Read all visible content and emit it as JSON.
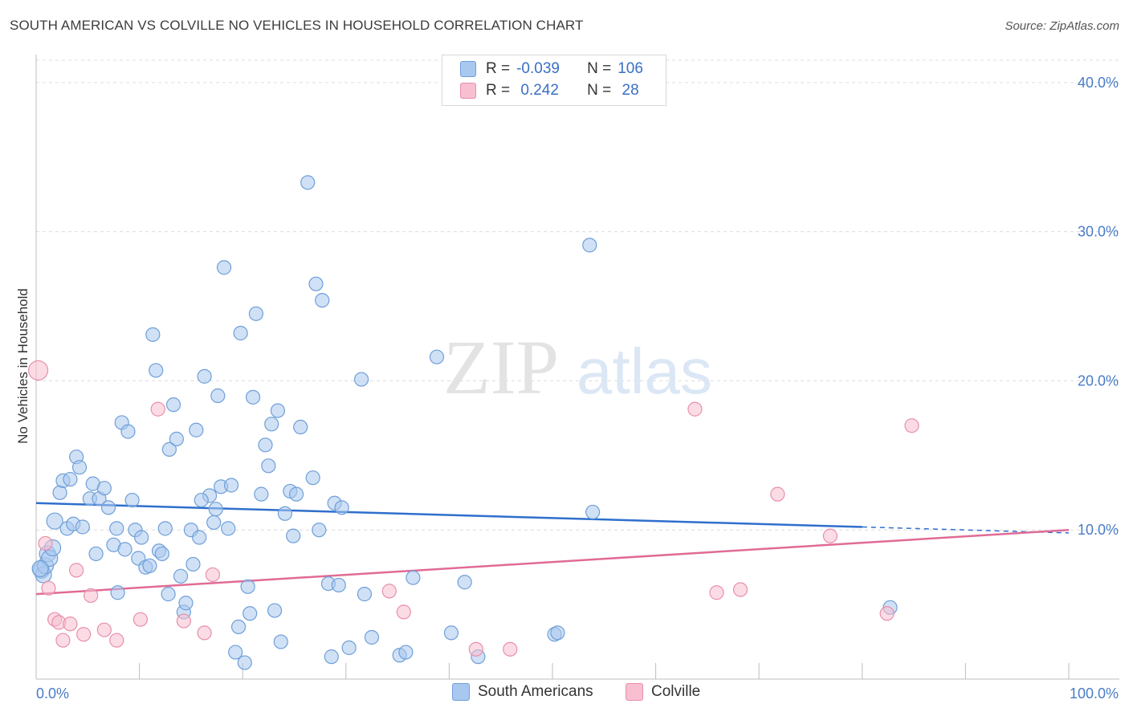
{
  "title": "SOUTH AMERICAN VS COLVILLE NO VEHICLES IN HOUSEHOLD CORRELATION CHART",
  "source": "Source: ZipAtlas.com",
  "watermark": {
    "zip": "ZIP",
    "atlas": "atlas"
  },
  "legend": {
    "rows": [
      {
        "r_label": "R =",
        "r_value": "-0.039",
        "n_label": "N =",
        "n_value": "106"
      },
      {
        "r_label": "R =",
        "r_value": " 0.242",
        "n_label": "N =",
        "n_value": " 28"
      }
    ]
  },
  "bottom_legend": {
    "south": "South Americans",
    "colville": "Colville"
  },
  "colors": {
    "south_fill": "#a9c8ef",
    "south_stroke": "#6f9fd8",
    "south_line": "#2f6fcc",
    "colville_fill": "#f7bfd0",
    "colville_stroke": "#e88fab",
    "colville_line": "#e06b96",
    "grid": "#dcdcdc",
    "tick_text": "#4a7cc8"
  },
  "chart_data": {
    "type": "scatter",
    "title": "SOUTH AMERICAN VS COLVILLE NO VEHICLES IN HOUSEHOLD CORRELATION CHART",
    "xlabel": "",
    "ylabel": "No Vehicles in Household",
    "xlim": [
      0,
      100
    ],
    "ylim": [
      0,
      41.5
    ],
    "x_tick_labels": [
      "0.0%",
      "100.0%"
    ],
    "y_ticks": [
      10,
      20,
      30,
      40
    ],
    "y_tick_labels": [
      "10.0%",
      "20.0%",
      "30.0%",
      "40.0%"
    ],
    "grid": true,
    "legend_position": "top-center",
    "series": [
      {
        "name": "South Americans",
        "R": -0.039,
        "N": 106,
        "trend": {
          "x0": 0,
          "y0": 11.8,
          "x1": 80,
          "y1": 10.2,
          "dashed_to": 100,
          "dashed_y": 9.8
        },
        "points": [
          [
            0.5,
            7.3
          ],
          [
            0.7,
            7.0
          ],
          [
            0.9,
            7.6
          ],
          [
            1.1,
            8.4
          ],
          [
            1.3,
            8.1
          ],
          [
            1.6,
            8.8
          ],
          [
            1.8,
            10.6
          ],
          [
            2.3,
            12.5
          ],
          [
            2.6,
            13.3
          ],
          [
            3.0,
            10.1
          ],
          [
            3.3,
            13.4
          ],
          [
            3.6,
            10.4
          ],
          [
            3.9,
            14.9
          ],
          [
            4.2,
            14.2
          ],
          [
            4.5,
            10.2
          ],
          [
            5.2,
            12.1
          ],
          [
            5.5,
            13.1
          ],
          [
            5.8,
            8.4
          ],
          [
            6.1,
            12.1
          ],
          [
            6.6,
            12.8
          ],
          [
            7.0,
            11.5
          ],
          [
            7.5,
            9.0
          ],
          [
            7.8,
            10.1
          ],
          [
            7.9,
            5.8
          ],
          [
            8.3,
            17.2
          ],
          [
            8.6,
            8.7
          ],
          [
            8.9,
            16.6
          ],
          [
            9.3,
            12.0
          ],
          [
            9.6,
            10.0
          ],
          [
            9.9,
            8.1
          ],
          [
            10.2,
            9.5
          ],
          [
            10.6,
            7.5
          ],
          [
            11.0,
            7.6
          ],
          [
            11.3,
            23.1
          ],
          [
            11.6,
            20.7
          ],
          [
            11.9,
            8.6
          ],
          [
            12.2,
            8.4
          ],
          [
            12.5,
            10.1
          ],
          [
            12.8,
            5.7
          ],
          [
            12.9,
            15.4
          ],
          [
            13.3,
            18.4
          ],
          [
            13.6,
            16.1
          ],
          [
            14.0,
            6.9
          ],
          [
            14.3,
            4.5
          ],
          [
            14.5,
            5.1
          ],
          [
            15.0,
            10.0
          ],
          [
            15.2,
            7.7
          ],
          [
            15.5,
            16.7
          ],
          [
            15.8,
            9.5
          ],
          [
            16.3,
            20.3
          ],
          [
            16.8,
            12.3
          ],
          [
            17.2,
            10.5
          ],
          [
            17.4,
            11.4
          ],
          [
            17.6,
            19.0
          ],
          [
            17.9,
            12.9
          ],
          [
            18.2,
            27.6
          ],
          [
            18.6,
            10.1
          ],
          [
            18.9,
            13.0
          ],
          [
            19.3,
            1.8
          ],
          [
            19.6,
            3.5
          ],
          [
            19.8,
            23.2
          ],
          [
            20.2,
            1.1
          ],
          [
            20.5,
            6.2
          ],
          [
            20.7,
            4.4
          ],
          [
            21.0,
            18.9
          ],
          [
            21.3,
            24.5
          ],
          [
            21.8,
            12.4
          ],
          [
            22.2,
            15.7
          ],
          [
            22.5,
            14.3
          ],
          [
            22.8,
            17.1
          ],
          [
            23.1,
            4.6
          ],
          [
            23.4,
            18.0
          ],
          [
            23.7,
            2.5
          ],
          [
            24.1,
            11.1
          ],
          [
            24.6,
            12.6
          ],
          [
            24.9,
            9.6
          ],
          [
            25.2,
            12.4
          ],
          [
            25.6,
            16.9
          ],
          [
            26.3,
            33.3
          ],
          [
            26.8,
            13.5
          ],
          [
            27.1,
            26.5
          ],
          [
            27.4,
            10.0
          ],
          [
            27.7,
            25.4
          ],
          [
            28.3,
            6.4
          ],
          [
            28.6,
            1.5
          ],
          [
            28.9,
            11.8
          ],
          [
            29.3,
            6.3
          ],
          [
            29.6,
            11.5
          ],
          [
            30.3,
            2.1
          ],
          [
            31.5,
            20.1
          ],
          [
            31.8,
            5.7
          ],
          [
            32.5,
            2.8
          ],
          [
            35.2,
            1.6
          ],
          [
            35.8,
            1.8
          ],
          [
            36.5,
            6.8
          ],
          [
            38.8,
            21.6
          ],
          [
            40.2,
            3.1
          ],
          [
            41.5,
            6.5
          ],
          [
            42.8,
            1.5
          ],
          [
            50.2,
            3.0
          ],
          [
            50.5,
            3.1
          ],
          [
            53.6,
            29.1
          ],
          [
            53.9,
            11.2
          ],
          [
            82.7,
            4.8
          ],
          [
            0.4,
            7.4
          ],
          [
            16.0,
            12.0
          ]
        ]
      },
      {
        "name": "Colville",
        "R": 0.242,
        "N": 28,
        "trend": {
          "x0": 0,
          "y0": 5.7,
          "x1": 100,
          "y1": 10.0
        },
        "points": [
          [
            0.2,
            20.7
          ],
          [
            0.9,
            9.1
          ],
          [
            1.2,
            6.1
          ],
          [
            1.8,
            4.0
          ],
          [
            2.2,
            3.8
          ],
          [
            2.6,
            2.6
          ],
          [
            3.3,
            3.7
          ],
          [
            3.9,
            7.3
          ],
          [
            4.6,
            3.0
          ],
          [
            5.3,
            5.6
          ],
          [
            6.6,
            3.3
          ],
          [
            7.8,
            2.6
          ],
          [
            10.1,
            4.0
          ],
          [
            11.8,
            18.1
          ],
          [
            14.3,
            3.9
          ],
          [
            16.3,
            3.1
          ],
          [
            17.1,
            7.0
          ],
          [
            34.2,
            5.9
          ],
          [
            35.6,
            4.5
          ],
          [
            42.6,
            2.0
          ],
          [
            45.9,
            2.0
          ],
          [
            63.8,
            18.1
          ],
          [
            65.9,
            5.8
          ],
          [
            68.2,
            6.0
          ],
          [
            71.8,
            12.4
          ],
          [
            76.9,
            9.6
          ],
          [
            82.4,
            4.4
          ],
          [
            84.8,
            17.0
          ]
        ]
      }
    ]
  }
}
